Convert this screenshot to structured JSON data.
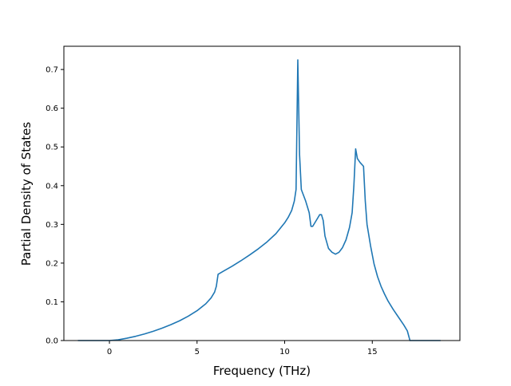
{
  "chart_data": {
    "type": "line",
    "title": "",
    "xlabel": "Frequency (THz)",
    "ylabel": "Partial Density of States",
    "xlim": [
      -2.6,
      20.0
    ],
    "ylim": [
      0.0,
      0.76
    ],
    "x_ticks": [
      0,
      5,
      10,
      15
    ],
    "y_ticks": [
      0.0,
      0.1,
      0.2,
      0.3,
      0.4,
      0.5,
      0.6,
      0.7
    ],
    "x_tick_labels": [
      "0",
      "5",
      "10",
      "15"
    ],
    "y_tick_labels": [
      "0.0",
      "0.1",
      "0.2",
      "0.3",
      "0.4",
      "0.5",
      "0.6",
      "0.7"
    ],
    "grid": false,
    "legend": false,
    "colors": {
      "line": "#1f77b4",
      "axes": "#000000",
      "background": "#ffffff"
    },
    "series": [
      {
        "x": [
          -1.8,
          -1.0,
          0.0,
          0.5,
          1.0,
          1.5,
          2.0,
          2.5,
          3.0,
          3.5,
          4.0,
          4.5,
          5.0,
          5.5,
          5.8,
          6.0,
          6.1,
          6.2,
          6.5,
          7.0,
          7.5,
          8.0,
          8.5,
          9.0,
          9.5,
          10.0,
          10.2,
          10.4,
          10.55,
          10.65,
          10.75,
          10.85,
          10.95,
          11.2,
          11.4,
          11.5,
          11.6,
          11.8,
          12.0,
          12.1,
          12.2,
          12.3,
          12.5,
          12.7,
          12.9,
          13.1,
          13.3,
          13.5,
          13.7,
          13.85,
          13.95,
          14.05,
          14.15,
          14.3,
          14.5,
          14.6,
          14.7,
          14.9,
          15.1,
          15.3,
          15.5,
          15.7,
          15.9,
          16.2,
          16.5,
          16.8,
          17.0,
          17.15,
          17.3,
          17.6,
          18.0,
          18.4,
          18.9
        ],
        "y": [
          0.0,
          0.0,
          0.0,
          0.002,
          0.006,
          0.011,
          0.017,
          0.024,
          0.032,
          0.041,
          0.051,
          0.063,
          0.077,
          0.095,
          0.11,
          0.125,
          0.14,
          0.171,
          0.179,
          0.192,
          0.206,
          0.221,
          0.237,
          0.255,
          0.276,
          0.304,
          0.318,
          0.336,
          0.36,
          0.39,
          0.725,
          0.48,
          0.39,
          0.36,
          0.33,
          0.295,
          0.295,
          0.31,
          0.325,
          0.325,
          0.31,
          0.27,
          0.238,
          0.228,
          0.223,
          0.228,
          0.24,
          0.26,
          0.292,
          0.33,
          0.4,
          0.495,
          0.47,
          0.46,
          0.45,
          0.36,
          0.3,
          0.245,
          0.198,
          0.165,
          0.14,
          0.12,
          0.102,
          0.08,
          0.06,
          0.04,
          0.025,
          0.0,
          0.0,
          0.0,
          0.0,
          0.0,
          0.0
        ]
      }
    ]
  }
}
